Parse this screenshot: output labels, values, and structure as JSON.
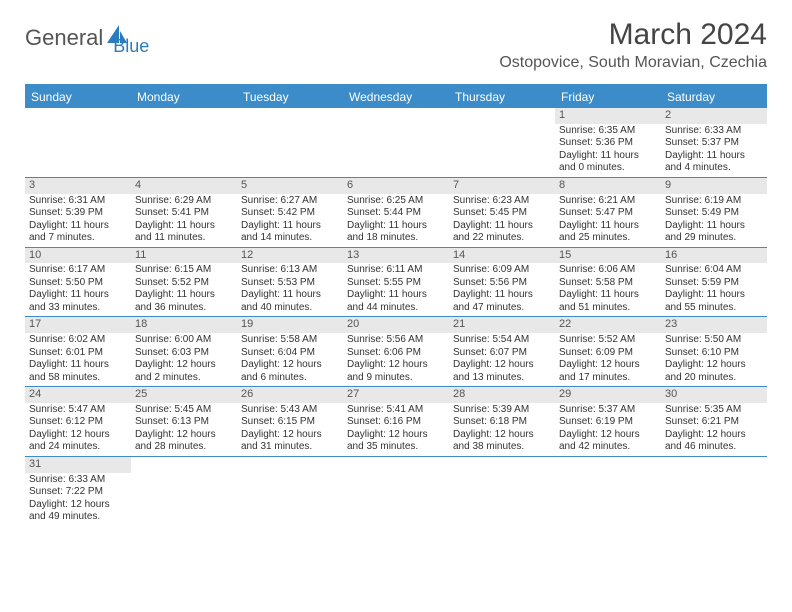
{
  "logo": {
    "textA": "General",
    "textB": "Blue"
  },
  "title": "March 2024",
  "location": "Ostopovice, South Moravian, Czechia",
  "dow": [
    "Sunday",
    "Monday",
    "Tuesday",
    "Wednesday",
    "Thursday",
    "Friday",
    "Saturday"
  ],
  "colors": {
    "header_bg": "#3b8cc9",
    "header_text": "#ffffff",
    "daynum_bg": "#e8e8e8",
    "border": "#3b8cc9"
  },
  "weeks": [
    [
      null,
      null,
      null,
      null,
      null,
      {
        "n": "1",
        "sr": "Sunrise: 6:35 AM",
        "ss": "Sunset: 5:36 PM",
        "dl1": "Daylight: 11 hours",
        "dl2": "and 0 minutes."
      },
      {
        "n": "2",
        "sr": "Sunrise: 6:33 AM",
        "ss": "Sunset: 5:37 PM",
        "dl1": "Daylight: 11 hours",
        "dl2": "and 4 minutes."
      }
    ],
    [
      {
        "n": "3",
        "sr": "Sunrise: 6:31 AM",
        "ss": "Sunset: 5:39 PM",
        "dl1": "Daylight: 11 hours",
        "dl2": "and 7 minutes."
      },
      {
        "n": "4",
        "sr": "Sunrise: 6:29 AM",
        "ss": "Sunset: 5:41 PM",
        "dl1": "Daylight: 11 hours",
        "dl2": "and 11 minutes."
      },
      {
        "n": "5",
        "sr": "Sunrise: 6:27 AM",
        "ss": "Sunset: 5:42 PM",
        "dl1": "Daylight: 11 hours",
        "dl2": "and 14 minutes."
      },
      {
        "n": "6",
        "sr": "Sunrise: 6:25 AM",
        "ss": "Sunset: 5:44 PM",
        "dl1": "Daylight: 11 hours",
        "dl2": "and 18 minutes."
      },
      {
        "n": "7",
        "sr": "Sunrise: 6:23 AM",
        "ss": "Sunset: 5:45 PM",
        "dl1": "Daylight: 11 hours",
        "dl2": "and 22 minutes."
      },
      {
        "n": "8",
        "sr": "Sunrise: 6:21 AM",
        "ss": "Sunset: 5:47 PM",
        "dl1": "Daylight: 11 hours",
        "dl2": "and 25 minutes."
      },
      {
        "n": "9",
        "sr": "Sunrise: 6:19 AM",
        "ss": "Sunset: 5:49 PM",
        "dl1": "Daylight: 11 hours",
        "dl2": "and 29 minutes."
      }
    ],
    [
      {
        "n": "10",
        "sr": "Sunrise: 6:17 AM",
        "ss": "Sunset: 5:50 PM",
        "dl1": "Daylight: 11 hours",
        "dl2": "and 33 minutes."
      },
      {
        "n": "11",
        "sr": "Sunrise: 6:15 AM",
        "ss": "Sunset: 5:52 PM",
        "dl1": "Daylight: 11 hours",
        "dl2": "and 36 minutes."
      },
      {
        "n": "12",
        "sr": "Sunrise: 6:13 AM",
        "ss": "Sunset: 5:53 PM",
        "dl1": "Daylight: 11 hours",
        "dl2": "and 40 minutes."
      },
      {
        "n": "13",
        "sr": "Sunrise: 6:11 AM",
        "ss": "Sunset: 5:55 PM",
        "dl1": "Daylight: 11 hours",
        "dl2": "and 44 minutes."
      },
      {
        "n": "14",
        "sr": "Sunrise: 6:09 AM",
        "ss": "Sunset: 5:56 PM",
        "dl1": "Daylight: 11 hours",
        "dl2": "and 47 minutes."
      },
      {
        "n": "15",
        "sr": "Sunrise: 6:06 AM",
        "ss": "Sunset: 5:58 PM",
        "dl1": "Daylight: 11 hours",
        "dl2": "and 51 minutes."
      },
      {
        "n": "16",
        "sr": "Sunrise: 6:04 AM",
        "ss": "Sunset: 5:59 PM",
        "dl1": "Daylight: 11 hours",
        "dl2": "and 55 minutes."
      }
    ],
    [
      {
        "n": "17",
        "sr": "Sunrise: 6:02 AM",
        "ss": "Sunset: 6:01 PM",
        "dl1": "Daylight: 11 hours",
        "dl2": "and 58 minutes."
      },
      {
        "n": "18",
        "sr": "Sunrise: 6:00 AM",
        "ss": "Sunset: 6:03 PM",
        "dl1": "Daylight: 12 hours",
        "dl2": "and 2 minutes."
      },
      {
        "n": "19",
        "sr": "Sunrise: 5:58 AM",
        "ss": "Sunset: 6:04 PM",
        "dl1": "Daylight: 12 hours",
        "dl2": "and 6 minutes."
      },
      {
        "n": "20",
        "sr": "Sunrise: 5:56 AM",
        "ss": "Sunset: 6:06 PM",
        "dl1": "Daylight: 12 hours",
        "dl2": "and 9 minutes."
      },
      {
        "n": "21",
        "sr": "Sunrise: 5:54 AM",
        "ss": "Sunset: 6:07 PM",
        "dl1": "Daylight: 12 hours",
        "dl2": "and 13 minutes."
      },
      {
        "n": "22",
        "sr": "Sunrise: 5:52 AM",
        "ss": "Sunset: 6:09 PM",
        "dl1": "Daylight: 12 hours",
        "dl2": "and 17 minutes."
      },
      {
        "n": "23",
        "sr": "Sunrise: 5:50 AM",
        "ss": "Sunset: 6:10 PM",
        "dl1": "Daylight: 12 hours",
        "dl2": "and 20 minutes."
      }
    ],
    [
      {
        "n": "24",
        "sr": "Sunrise: 5:47 AM",
        "ss": "Sunset: 6:12 PM",
        "dl1": "Daylight: 12 hours",
        "dl2": "and 24 minutes."
      },
      {
        "n": "25",
        "sr": "Sunrise: 5:45 AM",
        "ss": "Sunset: 6:13 PM",
        "dl1": "Daylight: 12 hours",
        "dl2": "and 28 minutes."
      },
      {
        "n": "26",
        "sr": "Sunrise: 5:43 AM",
        "ss": "Sunset: 6:15 PM",
        "dl1": "Daylight: 12 hours",
        "dl2": "and 31 minutes."
      },
      {
        "n": "27",
        "sr": "Sunrise: 5:41 AM",
        "ss": "Sunset: 6:16 PM",
        "dl1": "Daylight: 12 hours",
        "dl2": "and 35 minutes."
      },
      {
        "n": "28",
        "sr": "Sunrise: 5:39 AM",
        "ss": "Sunset: 6:18 PM",
        "dl1": "Daylight: 12 hours",
        "dl2": "and 38 minutes."
      },
      {
        "n": "29",
        "sr": "Sunrise: 5:37 AM",
        "ss": "Sunset: 6:19 PM",
        "dl1": "Daylight: 12 hours",
        "dl2": "and 42 minutes."
      },
      {
        "n": "30",
        "sr": "Sunrise: 5:35 AM",
        "ss": "Sunset: 6:21 PM",
        "dl1": "Daylight: 12 hours",
        "dl2": "and 46 minutes."
      }
    ],
    [
      {
        "n": "31",
        "sr": "Sunrise: 6:33 AM",
        "ss": "Sunset: 7:22 PM",
        "dl1": "Daylight: 12 hours",
        "dl2": "and 49 minutes."
      },
      null,
      null,
      null,
      null,
      null,
      null
    ]
  ]
}
